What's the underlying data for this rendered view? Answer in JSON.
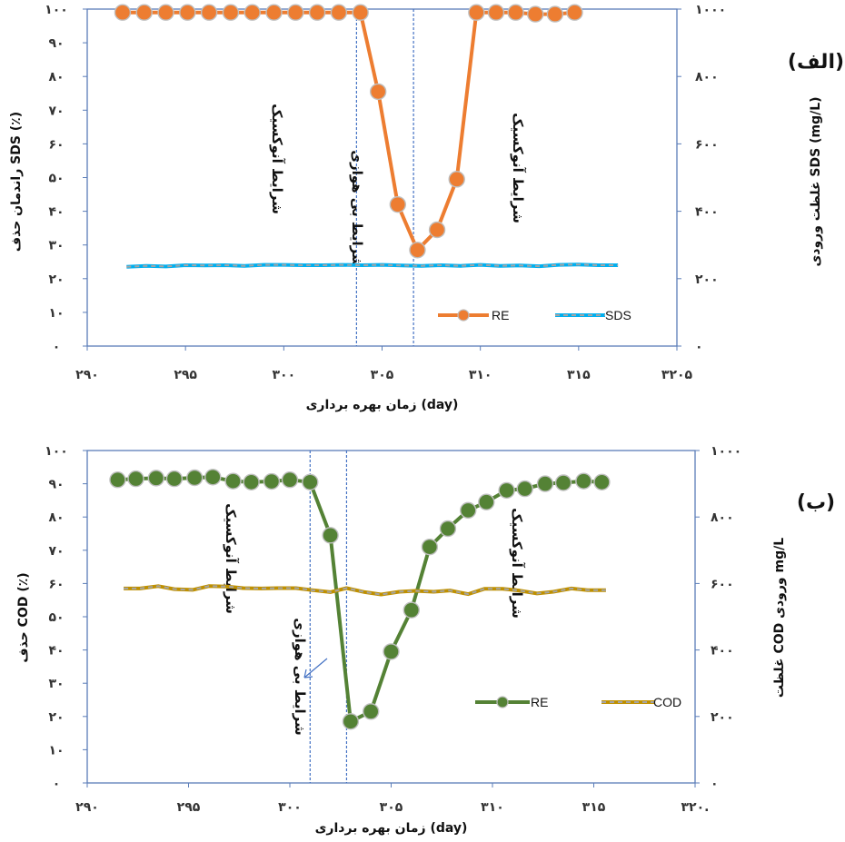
{
  "chart_data": [
    {
      "type": "line",
      "panel_label": "(الف)",
      "xlabel": "زمان بهره برداری (day)",
      "ylabel_left": "راندمان حذف SDS (٪)",
      "ylabel_right": "غلظت ورودی SDS (mg/L)",
      "xlim": [
        290,
        320
      ],
      "ylim_left": [
        0,
        100
      ],
      "ylim_right": [
        0,
        1000
      ],
      "x_ticks": [
        "۲۹۰",
        "۲۹۵",
        "۳۰۰",
        "۳۰۵",
        "۳۱۰",
        "۳۱۵",
        "۳۲۰۵"
      ],
      "y_ticks_left": [
        "۰",
        "۱۰",
        "۲۰",
        "۳۰",
        "۴۰",
        "۵۰",
        "۶۰",
        "۷۰",
        "۸۰",
        "۹۰",
        "۱۰۰"
      ],
      "y_ticks_right": [
        "۰",
        "۲۰۰",
        "۴۰۰",
        "۶۰۰",
        "۸۰۰",
        "۱۰۰۰"
      ],
      "phase_lines_x": [
        303.7,
        306.6
      ],
      "regions": [
        "شرایط آنوکسیک",
        "شرایط بی هوازی",
        "شرایط آنوکسیک"
      ],
      "series": [
        {
          "name": "RE",
          "axis": "left",
          "color": "#ED7D31",
          "marker": "circle",
          "x": [
            291.8,
            292.9,
            294.0,
            295.1,
            296.2,
            297.3,
            298.4,
            299.5,
            300.6,
            301.7,
            302.8,
            303.9,
            304.8,
            305.8,
            306.8,
            307.8,
            308.8,
            309.8,
            310.8,
            311.8,
            312.8,
            313.8,
            314.8
          ],
          "values": [
            99,
            99,
            99,
            99,
            99,
            99,
            99,
            99,
            99,
            99,
            99,
            99,
            75.5,
            42,
            28.5,
            34.5,
            49.5,
            99,
            99,
            99,
            98.5,
            98.5,
            99
          ]
        },
        {
          "name": "SDS",
          "axis": "right",
          "color": "#00B0F0",
          "dash_color": "#A5A5A5",
          "marker": "none",
          "x": [
            292.0,
            293.0,
            294.0,
            295.0,
            296.0,
            297.0,
            298.0,
            299.0,
            300.0,
            301.0,
            302.0,
            303.0,
            304.0,
            305.0,
            306.0,
            307.0,
            308.0,
            309.0,
            310.0,
            311.0,
            312.0,
            313.0,
            314.0,
            315.0,
            316.0,
            317.0
          ],
          "values": [
            235,
            238,
            236,
            240,
            239,
            240,
            238,
            241,
            241,
            240,
            240,
            241,
            240,
            241,
            239,
            238,
            240,
            238,
            241,
            238,
            239,
            237,
            241,
            242,
            240,
            240
          ]
        }
      ]
    },
    {
      "type": "line",
      "panel_label": "(ب)",
      "xlabel": "زمان بهره برداری (day)",
      "ylabel_left": "حذف COD (٪)",
      "ylabel_right": "غلظت COD ورودی mg/L",
      "xlim": [
        290,
        320
      ],
      "ylim_left": [
        0,
        100
      ],
      "ylim_right": [
        0,
        1000
      ],
      "x_ticks": [
        "۲۹۰",
        "۲۹۵",
        "۳۰۰",
        "۳۰۵",
        "۳۱۰",
        "۳۱۵",
        "۳۲۰."
      ],
      "y_ticks_left": [
        "۰",
        "۱۰",
        "۲۰",
        "۳۰",
        "۴۰",
        "۵۰",
        "۶۰",
        "۷۰",
        "۸۰",
        "۹۰",
        "۱۰۰"
      ],
      "y_ticks_right": [
        "۰",
        "۲۰۰",
        "۴۰۰",
        "۶۰۰",
        "۸۰۰",
        "۱۰۰۰"
      ],
      "phase_lines_x": [
        301.0,
        302.8
      ],
      "regions": [
        "شرایط آنوکسیک",
        "شرایط بی هوازی",
        "شرایط آنوکسیک"
      ],
      "series": [
        {
          "name": "RE",
          "axis": "left",
          "color": "#548235",
          "marker": "circle",
          "x": [
            291.5,
            292.4,
            293.4,
            294.3,
            295.3,
            296.2,
            297.2,
            298.1,
            299.1,
            300.0,
            301.0,
            302.0,
            303.0,
            304.0,
            305.0,
            306.0,
            306.9,
            307.8,
            308.8,
            309.7,
            310.7,
            311.6,
            312.6,
            313.5,
            314.5,
            315.4
          ],
          "values": [
            91.2,
            91.5,
            91.7,
            91.5,
            91.8,
            92.0,
            90.8,
            90.5,
            90.7,
            91.2,
            90.5,
            74.5,
            18.5,
            21.5,
            39.5,
            52,
            71,
            76.5,
            82,
            84.5,
            88,
            88.5,
            90,
            90.3,
            90.8,
            90.5
          ]
        },
        {
          "name": "COD",
          "axis": "right",
          "color": "#BF9000",
          "dash_color": "#A5A5A5",
          "marker": "none",
          "x": [
            291.8,
            292.6,
            293.5,
            294.3,
            295.2,
            296.0,
            296.9,
            297.7,
            298.6,
            299.4,
            300.3,
            301.1,
            302.0,
            302.8,
            303.7,
            304.5,
            305.4,
            306.2,
            307.1,
            307.9,
            308.8,
            309.6,
            310.5,
            311.3,
            312.2,
            313.0,
            313.9,
            314.7,
            315.6
          ],
          "values": [
            585,
            585,
            592,
            583,
            581,
            592,
            591,
            586,
            585,
            586,
            586,
            580,
            574,
            586,
            574,
            567,
            575,
            578,
            575,
            579,
            568,
            584,
            584,
            579,
            570,
            575,
            585,
            580,
            580
          ]
        }
      ]
    }
  ]
}
